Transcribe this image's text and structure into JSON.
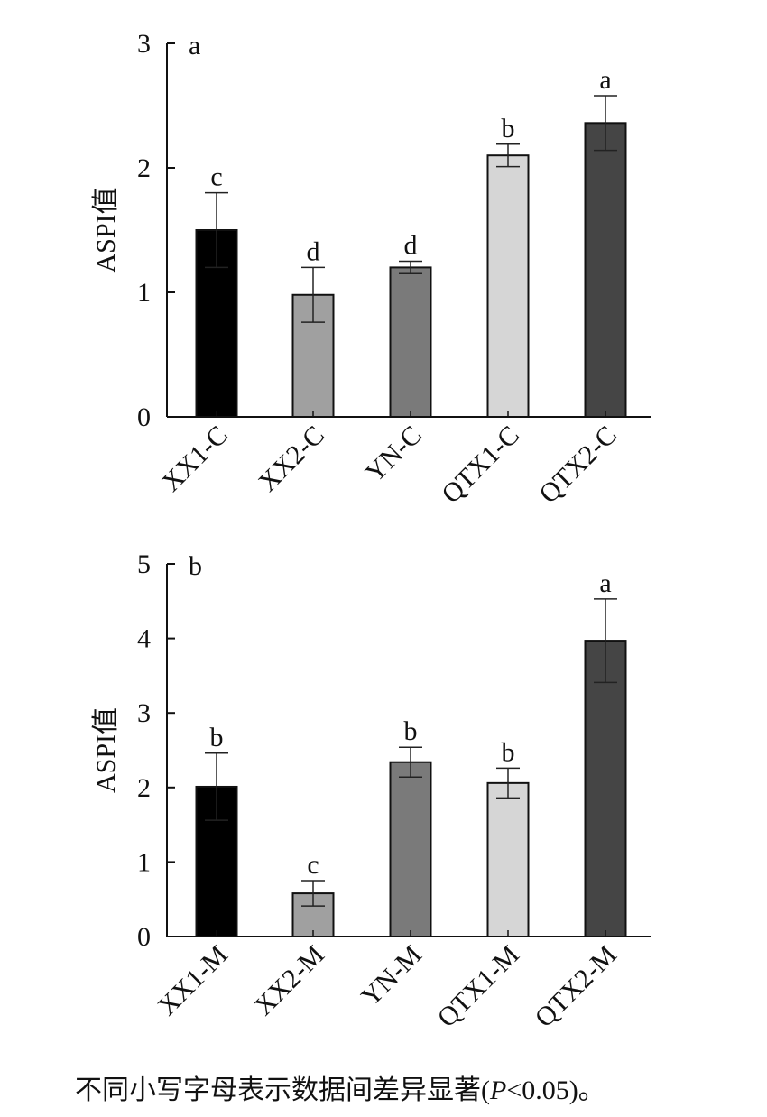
{
  "chart_data": [
    {
      "type": "bar",
      "panel_label": "a",
      "ylabel": "ASPI值",
      "xlabel": "",
      "ylim": [
        0,
        3
      ],
      "yticks": [
        "0",
        "1",
        "2",
        "3"
      ],
      "grid": false,
      "categories": [
        "XX1-C",
        "XX2-C",
        "YN-C",
        "QTX1-C",
        "QTX2-C"
      ],
      "values": [
        1.5,
        0.98,
        1.2,
        2.1,
        2.36
      ],
      "errors": [
        0.3,
        0.22,
        0.05,
        0.09,
        0.22
      ],
      "significance": [
        "c",
        "d",
        "d",
        "b",
        "a"
      ],
      "colors": [
        "#000000",
        "#a0a0a0",
        "#7a7a7a",
        "#d6d6d6",
        "#454545"
      ]
    },
    {
      "type": "bar",
      "panel_label": "b",
      "ylabel": "ASPI值",
      "xlabel": "",
      "ylim": [
        0,
        5
      ],
      "yticks": [
        "0",
        "1",
        "2",
        "3",
        "4",
        "5"
      ],
      "grid": false,
      "categories": [
        "XX1-M",
        "XX2-M",
        "YN-M",
        "QTX1-M",
        "QTX2-M"
      ],
      "values": [
        2.01,
        0.58,
        2.34,
        2.06,
        3.97
      ],
      "errors": [
        0.45,
        0.17,
        0.2,
        0.2,
        0.56
      ],
      "significance": [
        "b",
        "c",
        "b",
        "b",
        "a"
      ],
      "colors": [
        "#000000",
        "#a0a0a0",
        "#7a7a7a",
        "#d6d6d6",
        "#454545"
      ]
    }
  ],
  "caption": {
    "text": "不同小写字母表示数据间差异显著(",
    "p_symbol": "P",
    "p_rest": "<0.05)。"
  }
}
